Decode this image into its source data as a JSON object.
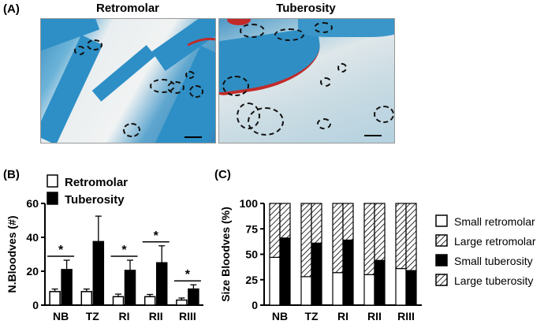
{
  "panel_labels": {
    "a": "(A)",
    "b": "(B)",
    "c": "(C)"
  },
  "histology": {
    "left_title": "Retromolar",
    "right_title": "Tuberosity"
  },
  "chart_data": [
    {
      "type": "bar",
      "panel": "(B)",
      "categories": [
        "NB",
        "TZ",
        "RI",
        "RII",
        "RIII"
      ],
      "ylabel": "N.Bloodves (#)",
      "ylim": [
        0,
        60
      ],
      "yticks": [
        0,
        20,
        40,
        60
      ],
      "legend_position": "top",
      "series": [
        {
          "name": "Retromolar",
          "fill": "#ffffff",
          "values": [
            8,
            8,
            5,
            5,
            3
          ],
          "errors": [
            1.5,
            1.5,
            1.5,
            1.3,
            1.2
          ]
        },
        {
          "name": "Tuberosity",
          "fill": "#000000",
          "values": [
            21,
            37.5,
            20.5,
            25,
            9.5
          ],
          "errors": [
            5.5,
            15,
            6,
            10,
            2.5
          ]
        }
      ],
      "significance": [
        {
          "category": "NB",
          "label": "*"
        },
        {
          "category": "RI",
          "label": "*"
        },
        {
          "category": "RII",
          "label": "*"
        },
        {
          "category": "RIII",
          "label": "*"
        }
      ]
    },
    {
      "type": "bar",
      "stacked": true,
      "panel": "(C)",
      "categories": [
        "NB",
        "TZ",
        "RI",
        "RII",
        "RIII"
      ],
      "ylabel": "Size Bloodves (%)",
      "ylim": [
        0,
        100
      ],
      "yticks": [
        0,
        25,
        50,
        75,
        100
      ],
      "legend_position": "right",
      "series": [
        {
          "name": "Small retromolar",
          "pattern": "white",
          "group": "retromolar",
          "values": [
            47,
            28,
            32,
            30,
            36
          ]
        },
        {
          "name": "Large retromolar",
          "pattern": "hatch",
          "group": "retromolar",
          "values": [
            53,
            72,
            68,
            70,
            64
          ]
        },
        {
          "name": "Small tuberosity",
          "pattern": "black",
          "group": "tuberosity",
          "values": [
            66,
            61,
            64,
            44,
            34
          ]
        },
        {
          "name": "Large tuberosity",
          "pattern": "hatch",
          "group": "tuberosity",
          "values": [
            34,
            39,
            36,
            56,
            66
          ]
        }
      ]
    }
  ]
}
